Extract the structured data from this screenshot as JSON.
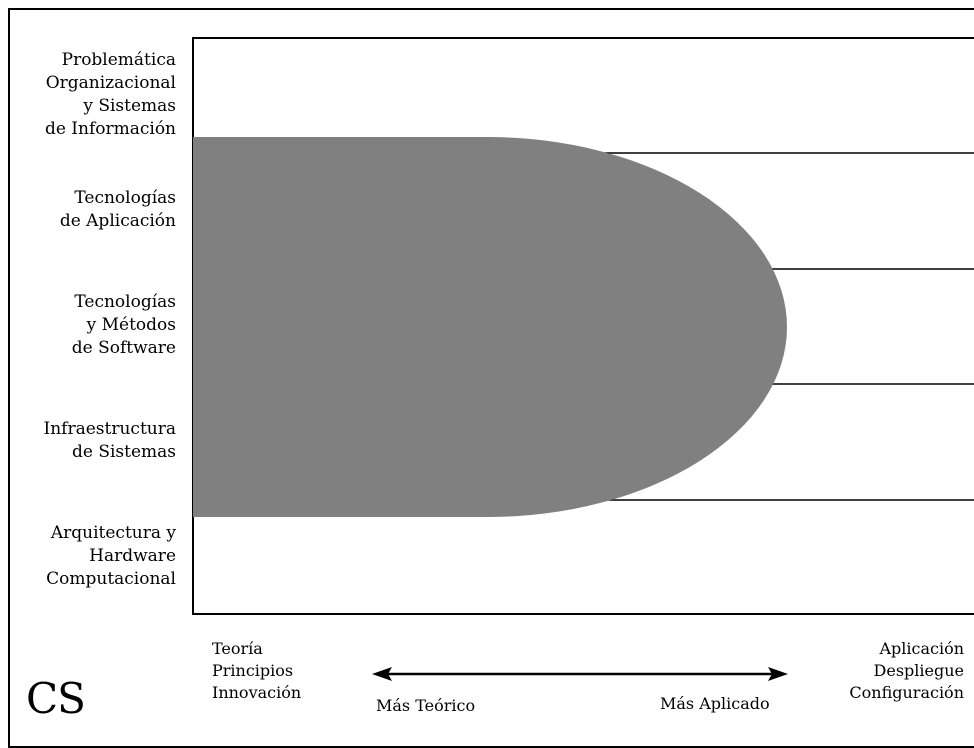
{
  "rows": [
    {
      "lines": [
        "Problemática",
        "Organizacional",
        "y Sistemas",
        "de Información"
      ]
    },
    {
      "lines": [
        "Tecnologías",
        "de Aplicación"
      ]
    },
    {
      "lines": [
        "Tecnologías",
        "y Métodos",
        "de Software"
      ]
    },
    {
      "lines": [
        "Infraestructura",
        "de Sistemas"
      ]
    },
    {
      "lines": [
        "Arquitectura y",
        "Hardware",
        "Computacional"
      ]
    }
  ],
  "axis": {
    "left_lines": [
      "Teoría",
      "Principios",
      "Innovación"
    ],
    "right_lines": [
      "Aplicación",
      "Despliegue",
      "Configuración"
    ],
    "left_arrow_label": "Más Teórico",
    "right_arrow_label": "Más Aplicado"
  },
  "discipline_mark": "CS",
  "colors": {
    "region_fill": "#808080",
    "line": "#000000"
  }
}
